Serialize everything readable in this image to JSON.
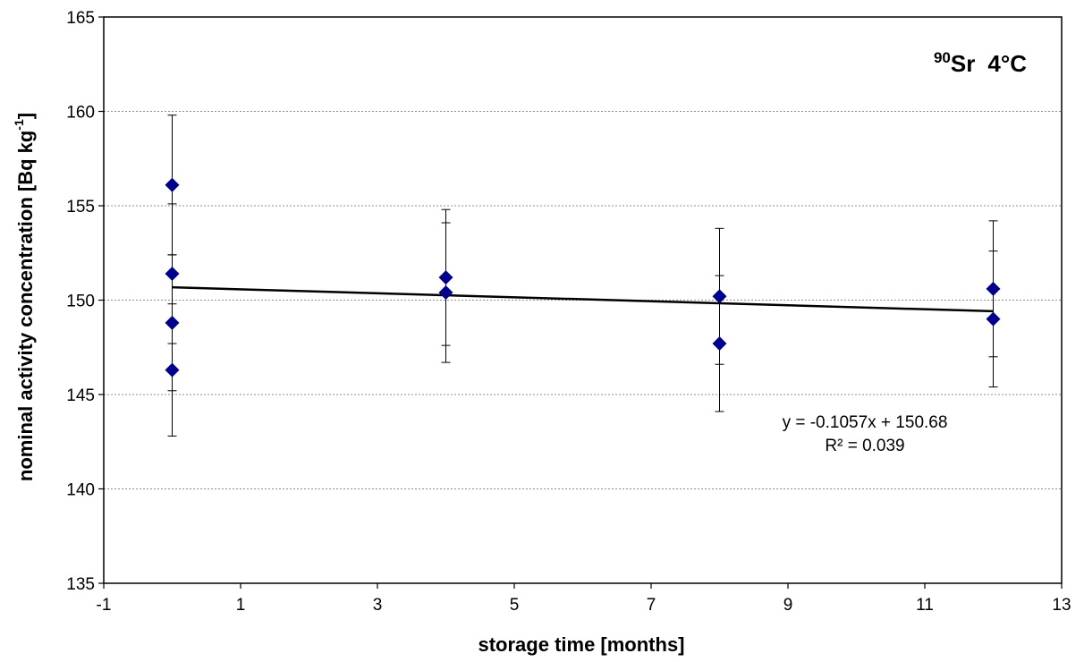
{
  "chart_data": {
    "type": "scatter",
    "xlabel": "storage  time  [months]",
    "ylabel_main": "nominal  activity  concentration  [Bq kg",
    "ylabel_sup": "-1",
    "ylabel_end": "]",
    "xlim": [
      -1,
      13
    ],
    "ylim": [
      135,
      165
    ],
    "xticks": [
      -1,
      1,
      3,
      5,
      7,
      9,
      11,
      13
    ],
    "yticks": [
      135,
      140,
      145,
      150,
      155,
      160,
      165
    ],
    "grid": "horizontal dashed",
    "marker_color": "#00008b",
    "label": {
      "isotope_mass": "90",
      "isotope": "Sr",
      "temperature": "4°C"
    },
    "points": [
      {
        "x": 0,
        "y": 156.1,
        "yerr": 3.7
      },
      {
        "x": 0,
        "y": 151.4,
        "yerr": 3.7
      },
      {
        "x": 0,
        "y": 148.8,
        "yerr": 3.6
      },
      {
        "x": 0,
        "y": 146.3,
        "yerr": 3.5
      },
      {
        "x": 4,
        "y": 151.2,
        "yerr": 3.6
      },
      {
        "x": 4,
        "y": 150.4,
        "yerr": 3.7
      },
      {
        "x": 8,
        "y": 150.2,
        "yerr": 3.6
      },
      {
        "x": 8,
        "y": 147.7,
        "yerr": 3.6
      },
      {
        "x": 12,
        "y": 150.6,
        "yerr": 3.6
      },
      {
        "x": 12,
        "y": 149.0,
        "yerr": 3.6
      }
    ],
    "trendline": {
      "slope": -0.1057,
      "intercept": 150.68,
      "x_range": [
        0,
        12
      ]
    },
    "equation": "y = -0.1057x + 150.68",
    "r_squared": "R² = 0.039"
  }
}
